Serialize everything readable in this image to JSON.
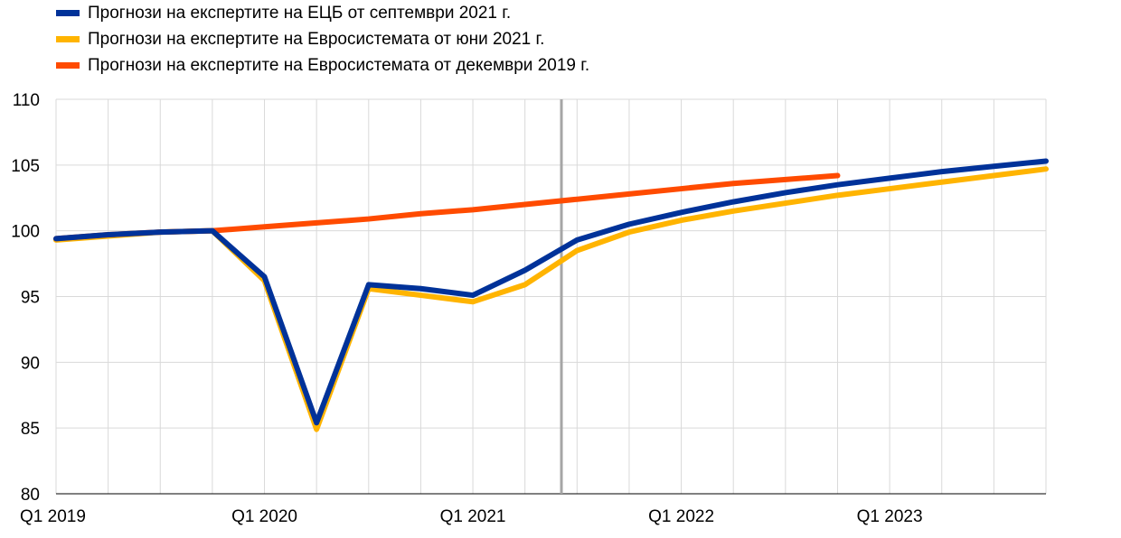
{
  "chart_data": {
    "type": "line",
    "categories": [
      "Q1 2019",
      "Q2 2019",
      "Q3 2019",
      "Q4 2019",
      "Q1 2020",
      "Q2 2020",
      "Q3 2020",
      "Q4 2020",
      "Q1 2021",
      "Q2 2021",
      "Q3 2021",
      "Q4 2021",
      "Q1 2022",
      "Q2 2022",
      "Q3 2022",
      "Q4 2022",
      "Q1 2023",
      "Q2 2023",
      "Q3 2023",
      "Q4 2023"
    ],
    "x_tick_labels": [
      "Q1 2019",
      "Q1 2020",
      "Q1 2021",
      "Q1 2022",
      "Q1 2023"
    ],
    "y_ticks": [
      80,
      85,
      90,
      95,
      100,
      105,
      110
    ],
    "ylim": [
      80,
      110
    ],
    "projection_start": "Q3 2021",
    "grid": true,
    "legend_position": "top-left",
    "series": [
      {
        "name": "Прогнози на експертите на Евросистемата от юни 2021 г.",
        "color": "#FFB400",
        "values": [
          99.3,
          99.6,
          99.9,
          100.0,
          96.2,
          84.9,
          95.6,
          95.1,
          94.6,
          95.9,
          98.5,
          99.9,
          100.8,
          101.5,
          102.1,
          102.7,
          103.2,
          103.7,
          104.2,
          104.7
        ]
      },
      {
        "name": "Прогнози на експертите на Евросистемата от декември 2019 г.",
        "color": "#FF4B00",
        "values": [
          99.4,
          99.7,
          99.9,
          100.0,
          100.3,
          100.6,
          100.9,
          101.3,
          101.6,
          102.0,
          102.4,
          102.8,
          103.2,
          103.6,
          103.9,
          104.2,
          null,
          null,
          null,
          null
        ]
      },
      {
        "name": "Прогнози на експертите на ЕЦБ от септември 2021 г.",
        "color": "#003299",
        "values": [
          99.4,
          99.7,
          99.9,
          100.0,
          96.5,
          85.4,
          95.9,
          95.6,
          95.1,
          97.0,
          99.3,
          100.5,
          101.4,
          102.2,
          102.9,
          103.5,
          104.0,
          104.5,
          104.9,
          105.3
        ]
      }
    ]
  },
  "legend": [
    {
      "label": "Прогнози на експертите на ЕЦБ от септември 2021 г.",
      "color": "#003299"
    },
    {
      "label": "Прогнози на експертите на Евросистемата от юни 2021 г.",
      "color": "#FFB400"
    },
    {
      "label": "Прогнози на експертите на Евросистемата от декември 2019 г.",
      "color": "#FF4B00"
    }
  ]
}
